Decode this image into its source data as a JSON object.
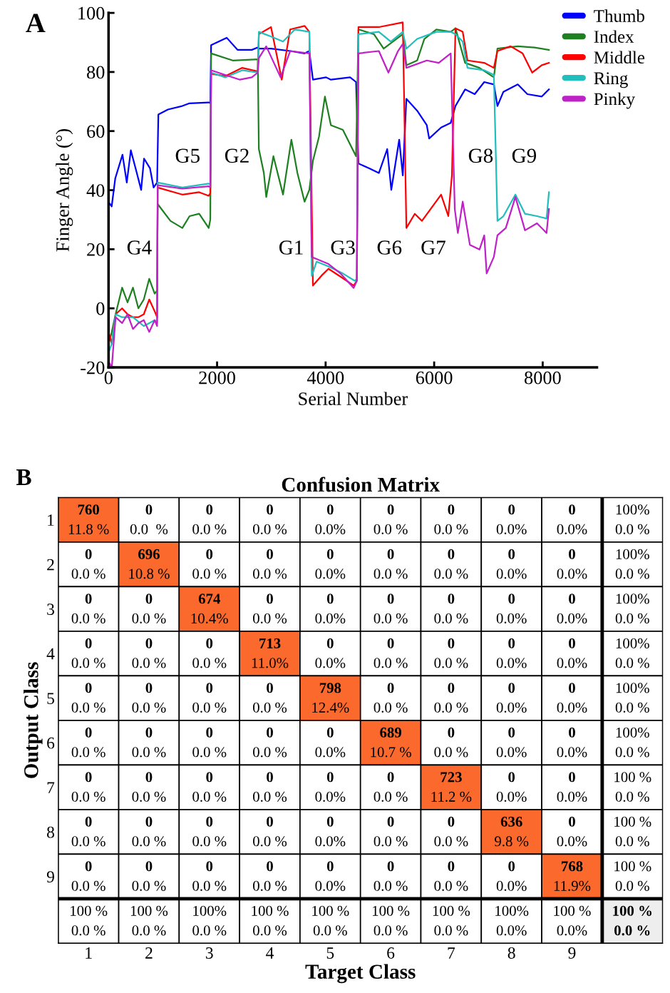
{
  "chart_data": [
    {
      "type": "line",
      "xlabel": "Serial Number",
      "ylabel": "Finger Angle (°)",
      "xlim": [
        0,
        9000
      ],
      "ylim": [
        -20,
        100
      ],
      "xticks": [
        0,
        2000,
        4000,
        6000,
        8000
      ],
      "yticks": [
        -20,
        0,
        20,
        40,
        60,
        80,
        100
      ],
      "legend": "top right",
      "annotations": [
        "A",
        "G4",
        "G5",
        "G2",
        "G1",
        "G3",
        "G6",
        "G7",
        "G8",
        "G9"
      ],
      "series": [
        {
          "name": "Thumb",
          "color": "#0000ff",
          "x": [
            0,
            58,
            124,
            257,
            336,
            411,
            521,
            601,
            654,
            764,
            830,
            895,
            918,
            1095,
            1360,
            1493,
            1846,
            1875,
            1890,
            2177,
            2376,
            2640,
            2750,
            2775,
            2994,
            3347,
            3612,
            3700,
            3766,
            4009,
            4097,
            4451,
            4561,
            4605,
            4804,
            4981,
            5135,
            5210,
            5356,
            5422,
            5488,
            5687,
            5864,
            5908,
            6128,
            6305,
            6393,
            6570,
            6747,
            6923,
            7100,
            7166,
            7276,
            7541,
            7718,
            7983,
            8115
          ],
          "values": [
            36,
            34.5,
            44,
            52,
            42.6,
            53.5,
            45.8,
            40.1,
            50.7,
            47.4,
            40.9,
            42.6,
            65.6,
            67.3,
            68.5,
            69.4,
            69.7,
            69.5,
            89.1,
            91.6,
            87.5,
            87.5,
            88.3,
            87.9,
            87.9,
            87.1,
            86.3,
            87.1,
            77.4,
            78.2,
            77.4,
            78.2,
            76.6,
            49,
            47.4,
            45.8,
            53.9,
            40.1,
            57.1,
            45,
            70.9,
            66.9,
            62,
            57.5,
            61.2,
            62.8,
            68.5,
            74.1,
            72.5,
            76.6,
            75.8,
            68.5,
            73.3,
            75.8,
            72.5,
            71.7,
            74.1
          ]
        },
        {
          "name": "Index",
          "color": "#1e8020",
          "x": [
            0,
            60,
            130,
            250,
            350,
            450,
            550,
            650,
            750,
            850,
            895,
            905,
            1140,
            1360,
            1493,
            1670,
            1846,
            1875,
            1890,
            2288,
            2750,
            2770,
            2862,
            2906,
            3038,
            3215,
            3369,
            3480,
            3612,
            3700,
            3766,
            3877,
            3987,
            4097,
            4318,
            4495,
            4561,
            4605,
            4890,
            5069,
            5422,
            5488,
            5687,
            5819,
            6040,
            6305,
            6393,
            6570,
            6835,
            7100,
            7166,
            7541,
            7851,
            8115
          ],
          "values": [
            -12,
            -8,
            -2,
            7,
            2,
            7,
            0,
            3,
            10,
            5,
            6,
            35.3,
            29.6,
            27.2,
            31.2,
            32,
            27.2,
            30,
            86.3,
            83.9,
            84.3,
            53.9,
            45.8,
            37.7,
            51.5,
            38.5,
            57.1,
            45.8,
            36.1,
            40.1,
            49.9,
            58,
            71.7,
            62,
            60.4,
            53.9,
            51.5,
            94.4,
            92.8,
            87.9,
            92.8,
            82.3,
            83.9,
            91.2,
            94.4,
            93.6,
            94.8,
            83.1,
            81.4,
            78.2,
            87.9,
            88.7,
            88.3,
            87.5
          ]
        },
        {
          "name": "Middle",
          "color": "#ff0000",
          "x": [
            0,
            60,
            130,
            250,
            350,
            450,
            550,
            650,
            750,
            850,
            895,
            905,
            1360,
            1670,
            1846,
            1875,
            1890,
            2150,
            2464,
            2750,
            2770,
            2994,
            3192,
            3347,
            3612,
            3700,
            3766,
            3921,
            4053,
            4318,
            4517,
            4575,
            4605,
            4981,
            5422,
            5488,
            5643,
            5775,
            6128,
            6261,
            6327,
            6393,
            6526,
            6614,
            6923,
            7100,
            7166,
            7408,
            7629,
            7806,
            7983,
            8115
          ],
          "values": [
            -8,
            -12,
            -2,
            0,
            -2,
            -3,
            -3,
            -2,
            3,
            -1,
            -3,
            40.9,
            38.5,
            39.3,
            38.1,
            39,
            79.4,
            78.6,
            81.4,
            80.2,
            92.8,
            95.2,
            77.4,
            94.4,
            95.6,
            93.6,
            7.7,
            11,
            13.4,
            10.2,
            7.7,
            9.3,
            95.2,
            95.2,
            96.8,
            27.2,
            32,
            29.6,
            38.5,
            31.2,
            45,
            94.8,
            93.6,
            83.9,
            83.1,
            81.4,
            87.1,
            88.7,
            86.3,
            79.8,
            82.3,
            83.1
          ]
        },
        {
          "name": "Ring",
          "color": "#22bdbd",
          "x": [
            0,
            60,
            130,
            250,
            450,
            650,
            750,
            850,
            895,
            905,
            1360,
            1846,
            1875,
            1890,
            2150,
            2464,
            2750,
            2770,
            2994,
            3215,
            3435,
            3700,
            3745,
            3833,
            4053,
            4318,
            4539,
            4575,
            4605,
            4981,
            5201,
            5422,
            5488,
            5687,
            6040,
            6305,
            6393,
            6526,
            6614,
            6923,
            7100,
            7166,
            7276,
            7497,
            7674,
            7895,
            8071,
            8115
          ],
          "values": [
            -15,
            -12,
            -2,
            -3,
            -3,
            -6,
            -5,
            -4,
            -5,
            42.6,
            40.9,
            42.2,
            42,
            79.8,
            78.2,
            80.6,
            79.8,
            93.6,
            92,
            90.3,
            94.4,
            93.6,
            11,
            15.8,
            14.2,
            11.8,
            9.3,
            10,
            92.8,
            93.6,
            90.3,
            93.6,
            87.9,
            91.2,
            93.6,
            93.6,
            92.8,
            90.3,
            81.4,
            80.6,
            79,
            29.6,
            31.2,
            38.5,
            32,
            31.2,
            30.4,
            39.3
          ]
        },
        {
          "name": "Pinky",
          "color": "#c020c8",
          "x": [
            0,
            60,
            130,
            250,
            350,
            450,
            550,
            650,
            750,
            850,
            895,
            905,
            1360,
            1846,
            1875,
            1890,
            2150,
            2420,
            2640,
            2750,
            2770,
            2906,
            3170,
            3347,
            3700,
            3745,
            4053,
            4274,
            4517,
            4575,
            4605,
            4981,
            5157,
            5334,
            5422,
            5488,
            5864,
            6084,
            6305,
            6380,
            6437,
            6526,
            6658,
            6835,
            6923,
            6967,
            7100,
            7166,
            7320,
            7497,
            7674,
            7895,
            8071,
            8115
          ],
          "values": [
            -18,
            -20,
            -3,
            -5,
            -2,
            -7,
            -5,
            -4,
            -8,
            -4,
            -6,
            41.7,
            40.5,
            41.3,
            41,
            80.6,
            79,
            77.4,
            78.2,
            79.8,
            84.7,
            88.7,
            78.2,
            87.1,
            86.3,
            17.4,
            15,
            11.8,
            6.9,
            9.3,
            86.3,
            87.1,
            79.8,
            87.1,
            89.5,
            81.4,
            83.9,
            83.1,
            86.3,
            33.6,
            25.5,
            36.1,
            21.5,
            19.9,
            24.7,
            11.8,
            17.4,
            24.7,
            27.2,
            37.7,
            26.4,
            28.8,
            25.5,
            33.6
          ]
        }
      ]
    },
    {
      "type": "heatmap",
      "title": "Confusion Matrix",
      "xlabel": "Target Class",
      "ylabel": "Output Class",
      "color": "#fb6a2c",
      "annotations": [
        "B",
        "11.8 %",
        "0.0  %",
        "0.0 %",
        "0.0 %",
        "0.0%",
        "0.0 %",
        "0.0 %",
        "0.0%",
        "0.0%",
        "0.0 %",
        "0.0 %",
        "10.8 %",
        "0.0 %",
        "0.0 %",
        "0.0%",
        "0.0 %",
        "0.0 %",
        "0.0%",
        "0.0%",
        "0.0 %",
        "0.0 %",
        "0.0 %",
        "10.4%",
        "0.0 %",
        "0.0%",
        "0.0 %",
        "0.0 %",
        "0.0%",
        "0.0%",
        "0.0 %",
        "0.0 %",
        "0.0 %",
        "0.0 %",
        "11.0%",
        "0.0%",
        "0.0 %",
        "0.0 %",
        "0.0%",
        "0.0%",
        "0.0 %",
        "0.0 %",
        "0.0 %",
        "0.0 %",
        "0.0 %",
        "12.4%",
        "0.0 %",
        "0.0 %",
        "0.0%",
        "0.0%",
        "0.0 %",
        "0.0 %",
        "0.0 %",
        "0.0 %",
        "0.0 %",
        "0.0%",
        "10.7 %",
        "0.0 %",
        "0.0%",
        "0.0%",
        "0.0 %",
        "0.0 %",
        "0.0 %",
        "0.0 %",
        "0.0 %",
        "0.0%",
        "0.0 %",
        "11.2 %",
        "0.0%",
        "0.0%",
        "0.0 %",
        "0.0 %",
        "0.0 %",
        "0.0 %",
        "0.0 %",
        "0.0%",
        "0.0 %",
        "0.0 %",
        "9.8 %",
        "0.0%",
        "0.0 %",
        "0.0 %",
        "0.0 %",
        "0.0 %",
        "0.0 %",
        "0.0%",
        "0.0 %",
        "0.0 %",
        "0.0%",
        "11.9%",
        "0.0 %",
        "0.0 %",
        "0.0 %",
        "0.0 %",
        "0.0 %",
        "0.0 %",
        "0.0 %",
        "0.0 %",
        "0.0%",
        "0.0%",
        "0.0 %"
      ],
      "categories": [
        "1",
        "2",
        "3",
        "4",
        "5",
        "6",
        "7",
        "8",
        "9",
        null
      ],
      "y_categories": [
        "1",
        "2",
        "3",
        "4",
        "5",
        "6",
        "7",
        "8",
        "9",
        null
      ],
      "cells": [
        [
          760,
          0,
          0,
          0,
          0,
          0,
          0,
          0,
          0,
          100
        ],
        [
          0,
          696,
          0,
          0,
          0,
          0,
          0,
          0,
          0,
          100
        ],
        [
          0,
          0,
          674,
          0,
          0,
          0,
          0,
          0,
          0,
          100
        ],
        [
          0,
          0,
          0,
          713,
          0,
          0,
          0,
          0,
          0,
          100
        ],
        [
          0,
          0,
          0,
          0,
          798,
          0,
          0,
          0,
          0,
          100
        ],
        [
          0,
          0,
          0,
          0,
          0,
          689,
          0,
          0,
          0,
          100
        ],
        [
          0,
          0,
          0,
          0,
          0,
          0,
          723,
          0,
          0,
          100
        ],
        [
          0,
          0,
          0,
          0,
          0,
          0,
          0,
          636,
          0,
          100
        ],
        [
          0,
          0,
          0,
          0,
          0,
          0,
          0,
          0,
          768,
          100
        ],
        [
          100,
          100,
          100,
          100,
          100,
          100,
          100,
          100,
          100,
          100
        ]
      ],
      "cell_labels": [
        [
          "760",
          "0",
          "0",
          "0",
          "0",
          "0",
          "0",
          "0",
          "0",
          "100%"
        ],
        [
          "0",
          "696",
          "0",
          "0",
          "0",
          "0",
          "0",
          "0",
          "0",
          "100%"
        ],
        [
          "0",
          "0",
          "674",
          "0",
          "0",
          "0",
          "0",
          "0",
          "0",
          "100%"
        ],
        [
          "0",
          "0",
          "0",
          "713",
          "0",
          "0",
          "0",
          "0",
          "0",
          "100%"
        ],
        [
          "0",
          "0",
          "0",
          "0",
          "798",
          "0",
          "0",
          "0",
          "0",
          "100%"
        ],
        [
          "0",
          "0",
          "0",
          "0",
          "0",
          "689",
          "0",
          "0",
          "0",
          "100%"
        ],
        [
          "0",
          "0",
          "0",
          "0",
          "0",
          "0",
          "723",
          "0",
          "0",
          "100 %"
        ],
        [
          "0",
          "0",
          "0",
          "0",
          "0",
          "0",
          "0",
          "636",
          "0",
          "100 %"
        ],
        [
          "0",
          "0",
          "0",
          "0",
          "0",
          "0",
          "0",
          "0",
          "768",
          "100 %"
        ],
        [
          "100 %",
          "100 %",
          "100%",
          "100 %",
          "100 %",
          "100 %",
          "100 %",
          "100%",
          "100 %",
          "100 %"
        ]
      ]
    }
  ]
}
